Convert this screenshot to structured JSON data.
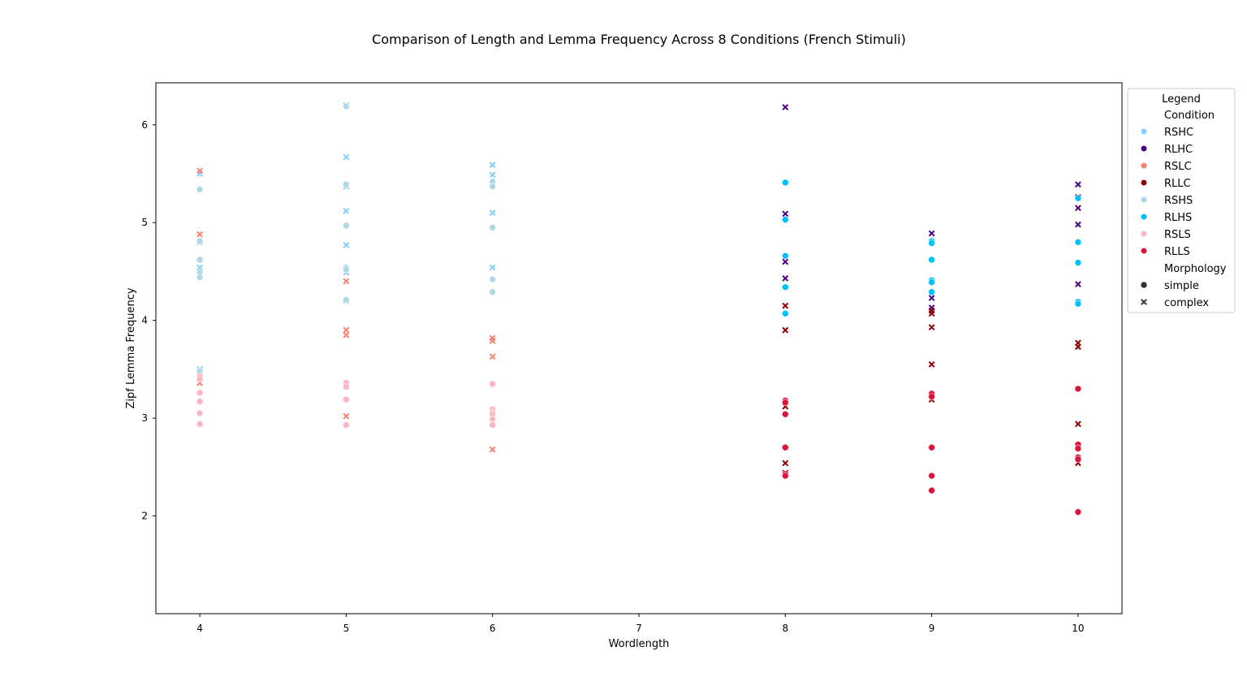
{
  "chart_data": {
    "type": "scatter",
    "title": "Comparison of Length and Lemma Frequency Across 8 Conditions (French Stimuli)",
    "xlabel": "Wordlength",
    "ylabel": "Zipf Lemma Frequency",
    "xlim": [
      3.7,
      10.3
    ],
    "ylim": [
      1.0,
      6.43
    ],
    "xticks": [
      4,
      5,
      6,
      7,
      8,
      9,
      10
    ],
    "yticks": [
      2,
      3,
      4,
      5,
      6
    ],
    "grid": false,
    "legend": {
      "title": "Legend",
      "placement": "outside-right",
      "hue_title": "Condition",
      "style_title": "Morphology",
      "style_entries": [
        {
          "label": "simple",
          "marker": "circle"
        },
        {
          "label": "complex",
          "marker": "x"
        }
      ]
    },
    "series": [
      {
        "name": "RSHC",
        "color": "#87cefa",
        "marker": "x",
        "x": [
          4,
          4,
          4,
          4,
          4,
          5,
          5,
          5,
          5,
          5,
          5,
          5,
          6,
          6,
          6,
          6,
          6
        ],
        "y": [
          5.5,
          4.8,
          4.54,
          4.5,
          3.5,
          5.67,
          5.37,
          5.12,
          4.77,
          4.49,
          4.2,
          6.2,
          5.59,
          5.49,
          5.1,
          4.54,
          5.4
        ]
      },
      {
        "name": "RLHC",
        "color": "#4b0082",
        "marker": "x",
        "x": [
          8,
          8,
          8,
          8,
          9,
          9,
          9,
          10,
          10,
          10,
          10,
          10
        ],
        "y": [
          6.18,
          5.09,
          4.6,
          4.43,
          4.89,
          4.23,
          4.13,
          5.39,
          5.15,
          4.98,
          4.37,
          5.26
        ]
      },
      {
        "name": "RSLC",
        "color": "#fa8072",
        "marker": "x",
        "x": [
          4,
          4,
          4,
          4,
          5,
          5,
          5,
          5,
          6,
          6,
          6,
          6
        ],
        "y": [
          5.53,
          4.88,
          3.47,
          3.36,
          4.4,
          3.9,
          3.85,
          3.02,
          3.82,
          3.79,
          3.63,
          2.68
        ]
      },
      {
        "name": "RLLC",
        "color": "#8b0000",
        "marker": "x",
        "x": [
          8,
          8,
          8,
          8,
          8,
          9,
          9,
          9,
          9,
          9,
          10,
          10,
          10,
          10
        ],
        "y": [
          4.15,
          3.9,
          3.12,
          2.54,
          2.44,
          4.1,
          4.07,
          3.93,
          3.55,
          3.19,
          3.77,
          3.73,
          2.94,
          2.54
        ]
      },
      {
        "name": "RSHS",
        "color": "#add8e6",
        "marker": "circle",
        "x": [
          4,
          4,
          4,
          4,
          4,
          4,
          5,
          5,
          5,
          5,
          5,
          5,
          6,
          6,
          6,
          6,
          6
        ],
        "y": [
          5.34,
          4.81,
          4.62,
          4.49,
          4.44,
          3.48,
          6.19,
          5.39,
          4.97,
          4.54,
          4.52,
          4.21,
          5.42,
          5.37,
          4.95,
          4.42,
          4.29
        ]
      },
      {
        "name": "RLHS",
        "color": "#00bfff",
        "marker": "circle",
        "x": [
          8,
          8,
          8,
          8,
          8,
          9,
          9,
          9,
          9,
          9,
          9,
          10,
          10,
          10,
          10,
          10
        ],
        "y": [
          5.41,
          5.03,
          4.66,
          4.34,
          4.07,
          4.81,
          4.79,
          4.62,
          4.41,
          4.39,
          4.29,
          5.25,
          4.8,
          4.59,
          4.19,
          4.17
        ]
      },
      {
        "name": "RSLS",
        "color": "#ffb6c1",
        "marker": "circle",
        "x": [
          4,
          4,
          4,
          4,
          4,
          4,
          5,
          5,
          5,
          5,
          6,
          6,
          6,
          6,
          6,
          6
        ],
        "y": [
          3.43,
          3.4,
          3.26,
          3.17,
          3.05,
          2.94,
          3.36,
          3.32,
          3.19,
          2.93,
          3.35,
          3.09,
          3.06,
          3.04,
          2.99,
          2.93
        ]
      },
      {
        "name": "RLLS",
        "color": "#dc143c",
        "marker": "circle",
        "x": [
          8,
          8,
          8,
          8,
          8,
          8,
          9,
          9,
          9,
          9,
          9,
          10,
          10,
          10,
          10,
          10,
          10
        ],
        "y": [
          3.18,
          3.16,
          3.04,
          2.7,
          2.43,
          2.41,
          3.25,
          3.22,
          2.7,
          2.41,
          2.26,
          3.3,
          2.73,
          2.69,
          2.6,
          2.58,
          2.04
        ]
      }
    ]
  }
}
